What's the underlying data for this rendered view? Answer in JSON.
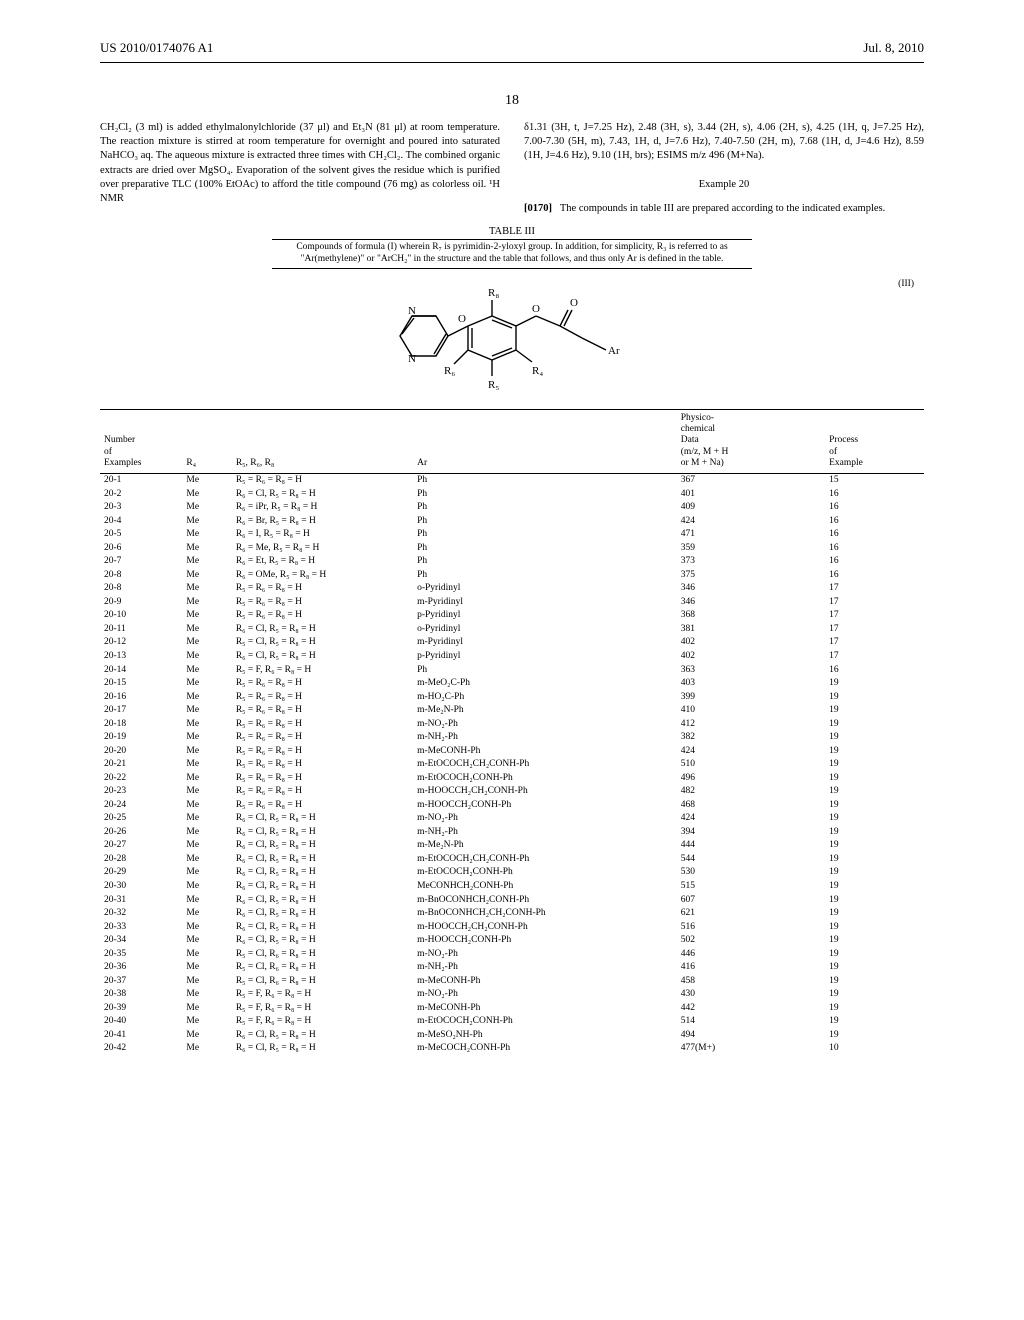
{
  "header": {
    "left": "US 2010/0174076 A1",
    "right": "Jul. 8, 2010"
  },
  "page_number": "18",
  "left_col_text": "CH₂Cl₂ (3 ml) is added ethylmalonylchloride (37 μl) and Et₃N (81 μl) at room temperature. The reaction mixture is stirred at room temperature for overnight and poured into saturated NaHCO₃ aq. The aqueous mixture is extracted three times with CH₂Cl₂. The combined organic extracts are dried over MgSO₄. Evaporation of the solvent gives the residue which is purified over preparative TLC (100% EtOAc) to afford the title compound (76 mg) as colorless oil. ¹H NMR",
  "right_col_nmr": "δ1.31 (3H, t, J=7.25 Hz), 2.48 (3H, s), 3.44 (2H, s), 4.06 (2H, s), 4.25 (1H, q, J=7.25 Hz), 7.00-7.30 (5H, m), 7.43, 1H, d, J=7.6 Hz), 7.40-7.50 (2H, m), 7.68 (1H, d, J=4.6 Hz), 8.59 (1H, J=4.6 Hz), 9.10 (1H, brs); ESIMS m/z 496 (M+Na).",
  "example20": {
    "heading": "Example 20",
    "para_num": "[0170]",
    "text": "The compounds in table III are prepared according to the indicated examples."
  },
  "table": {
    "label": "TABLE III",
    "caption": "Compounds of formula (I) wherein R₇ is pyrimidin-2-yloxyl group. In addition, for simplicity, R₃ is referred to as \"Ar(methylene)\" or \"ArCH₂\" in the structure and the table that follows, and thus only Ar is defined in the table.",
    "formula_num": "(III)",
    "structure_labels": {
      "R4": "R₄",
      "R5": "R₅",
      "R6": "R₆",
      "R8": "R₈",
      "Ar": "Ar"
    },
    "headers": {
      "num": "Number\nof\nExamples",
      "r4": "R₄",
      "r568": "R₅, R₆, R₈",
      "ar": "Ar",
      "data": "Physico-\nchemical\nData\n(m/z, M + H\nor M + Na)",
      "proc": "Process\nof\nExample"
    },
    "rows": [
      {
        "n": "20-1",
        "r4": "Me",
        "r": "R₅ = R₆ = R₈ = H",
        "ar": "Ph",
        "d": "367",
        "p": "15"
      },
      {
        "n": "20-2",
        "r4": "Me",
        "r": "R₆ = Cl, R₅ = R₈ = H",
        "ar": "Ph",
        "d": "401",
        "p": "16"
      },
      {
        "n": "20-3",
        "r4": "Me",
        "r": "R₆ = iPr, R₅ = R₈ = H",
        "ar": "Ph",
        "d": "409",
        "p": "16"
      },
      {
        "n": "20-4",
        "r4": "Me",
        "r": "R₆ = Br, R₅ = R₈ = H",
        "ar": "Ph",
        "d": "424",
        "p": "16"
      },
      {
        "n": "20-5",
        "r4": "Me",
        "r": "R₆ = I, R₅ = R₈ = H",
        "ar": "Ph",
        "d": "471",
        "p": "16"
      },
      {
        "n": "20-6",
        "r4": "Me",
        "r": "R₆ = Me, R₅ = R₈ = H",
        "ar": "Ph",
        "d": "359",
        "p": "16"
      },
      {
        "n": "20-7",
        "r4": "Me",
        "r": "R₆ = Et, R₅ = R₈ = H",
        "ar": "Ph",
        "d": "373",
        "p": "16"
      },
      {
        "n": "20-8",
        "r4": "Me",
        "r": "R₆ = OMe, R₅ = R₈ = H",
        "ar": "Ph",
        "d": "375",
        "p": "16"
      },
      {
        "n": "20-8",
        "r4": "Me",
        "r": "R₅ = R₆ = R₈ = H",
        "ar": "o-Pyridinyl",
        "d": "346",
        "p": "17"
      },
      {
        "n": "20-9",
        "r4": "Me",
        "r": "R₅ = R₆ = R₈ = H",
        "ar": "m-Pyridinyl",
        "d": "346",
        "p": "17"
      },
      {
        "n": "20-10",
        "r4": "Me",
        "r": "R₅ = R₆ = R₈ = H",
        "ar": "p-Pyridinyl",
        "d": "368",
        "p": "17"
      },
      {
        "n": "20-11",
        "r4": "Me",
        "r": "R₆ = Cl, R₅ = R₈ = H",
        "ar": "o-Pyridinyl",
        "d": "381",
        "p": "17"
      },
      {
        "n": "20-12",
        "r4": "Me",
        "r": "R₅ = Cl, R₅ = R₈ = H",
        "ar": "m-Pyridinyl",
        "d": "402",
        "p": "17"
      },
      {
        "n": "20-13",
        "r4": "Me",
        "r": "R₆ = Cl, R₅ = R₈ = H",
        "ar": "p-Pyridinyl",
        "d": "402",
        "p": "17"
      },
      {
        "n": "20-14",
        "r4": "Me",
        "r": "R₅ = F, R₆ = R₈ = H",
        "ar": "Ph",
        "d": "363",
        "p": "16"
      },
      {
        "n": "20-15",
        "r4": "Me",
        "r": "R₅ = R₆ = R₈ = H",
        "ar": "m-MeO₂C-Ph",
        "d": "403",
        "p": "19"
      },
      {
        "n": "20-16",
        "r4": "Me",
        "r": "R₅ = R₆ = R₈ = H",
        "ar": "m-HO₂C-Ph",
        "d": "399",
        "p": "19"
      },
      {
        "n": "20-17",
        "r4": "Me",
        "r": "R₅ = R₆ = R₈ = H",
        "ar": "m-Me₂N-Ph",
        "d": "410",
        "p": "19"
      },
      {
        "n": "20-18",
        "r4": "Me",
        "r": "R₅ = R₆ = R₈ = H",
        "ar": "m-NO₂-Ph",
        "d": "412",
        "p": "19"
      },
      {
        "n": "20-19",
        "r4": "Me",
        "r": "R₅ = R₆ = R₈ = H",
        "ar": "m-NH₂-Ph",
        "d": "382",
        "p": "19"
      },
      {
        "n": "20-20",
        "r4": "Me",
        "r": "R₅ = R₆ = R₈ = H",
        "ar": "m-MeCONH-Ph",
        "d": "424",
        "p": "19"
      },
      {
        "n": "20-21",
        "r4": "Me",
        "r": "R₅ = R₆ = R₈ = H",
        "ar": "m-EtOCOCH₂CH₂CONH-Ph",
        "d": "510",
        "p": "19"
      },
      {
        "n": "20-22",
        "r4": "Me",
        "r": "R₅ = R₆ = R₈ = H",
        "ar": "m-EtOCOCH₂CONH-Ph",
        "d": "496",
        "p": "19"
      },
      {
        "n": "20-23",
        "r4": "Me",
        "r": "R₅ = R₆ = R₈ = H",
        "ar": "m-HOOCCH₂CH₂CONH-Ph",
        "d": "482",
        "p": "19"
      },
      {
        "n": "20-24",
        "r4": "Me",
        "r": "R₅ = R₆ = R₈ = H",
        "ar": "m-HOOCCH₂CONH-Ph",
        "d": "468",
        "p": "19"
      },
      {
        "n": "20-25",
        "r4": "Me",
        "r": "R₆ = Cl, R₅ = R₈ = H",
        "ar": "m-NO₂-Ph",
        "d": "424",
        "p": "19"
      },
      {
        "n": "20-26",
        "r4": "Me",
        "r": "R₆ = Cl, R₅ = R₈ = H",
        "ar": "m-NH₂-Ph",
        "d": "394",
        "p": "19"
      },
      {
        "n": "20-27",
        "r4": "Me",
        "r": "R₆ = Cl, R₅ = R₈ = H",
        "ar": "m-Me₂N-Ph",
        "d": "444",
        "p": "19"
      },
      {
        "n": "20-28",
        "r4": "Me",
        "r": "R₆ = Cl, R₅ = R₈ = H",
        "ar": "m-EtOCOCH₂CH₂CONH-Ph",
        "d": "544",
        "p": "19"
      },
      {
        "n": "20-29",
        "r4": "Me",
        "r": "R₆ = Cl, R₅ = R₈ = H",
        "ar": "m-EtOCOCH₂CONH-Ph",
        "d": "530",
        "p": "19"
      },
      {
        "n": "20-30",
        "r4": "Me",
        "r": "R₆ = Cl, R₅ = R₈ = H",
        "ar": "MeCONHCH₂CONH-Ph",
        "d": "515",
        "p": "19"
      },
      {
        "n": "20-31",
        "r4": "Me",
        "r": "R₆ = Cl, R₅ = R₈ = H",
        "ar": "m-BnOCONHCH₂CONH-Ph",
        "d": "607",
        "p": "19"
      },
      {
        "n": "20-32",
        "r4": "Me",
        "r": "R₆ = Cl, R₅ = R₈ = H",
        "ar": "m-BnOCONHCH₂CH₂CONH-Ph",
        "d": "621",
        "p": "19"
      },
      {
        "n": "20-33",
        "r4": "Me",
        "r": "R₆ = Cl, R₅ = R₈ = H",
        "ar": "m-HOOCCH₂CH₂CONH-Ph",
        "d": "516",
        "p": "19"
      },
      {
        "n": "20-34",
        "r4": "Me",
        "r": "R₆ = Cl, R₅ = R₈ = H",
        "ar": "m-HOOCCH₂CONH-Ph",
        "d": "502",
        "p": "19"
      },
      {
        "n": "20-35",
        "r4": "Me",
        "r": "R₅ = Cl, R₆ = R₈ = H",
        "ar": "m-NO₂-Ph",
        "d": "446",
        "p": "19"
      },
      {
        "n": "20-36",
        "r4": "Me",
        "r": "R₅ = Cl, R₆ = R₈ = H",
        "ar": "m-NH₂-Ph",
        "d": "416",
        "p": "19"
      },
      {
        "n": "20-37",
        "r4": "Me",
        "r": "R₅ = Cl, R₆ = R₈ = H",
        "ar": "m-MeCONH-Ph",
        "d": "458",
        "p": "19"
      },
      {
        "n": "20-38",
        "r4": "Me",
        "r": "R₅ = F, R₆ = R₈ = H",
        "ar": "m-NO₂-Ph",
        "d": "430",
        "p": "19"
      },
      {
        "n": "20-39",
        "r4": "Me",
        "r": "R₅ = F, R₆ = R₈ = H",
        "ar": "m-MeCONH-Ph",
        "d": "442",
        "p": "19"
      },
      {
        "n": "20-40",
        "r4": "Me",
        "r": "R₅ = F, R₆ = R₈ = H",
        "ar": "m-EtOCOCH₂CONH-Ph",
        "d": "514",
        "p": "19"
      },
      {
        "n": "20-41",
        "r4": "Me",
        "r": "R₆ = Cl, R₅ = R₈ = H",
        "ar": "m-MeSO₂NH-Ph",
        "d": "494",
        "p": "19"
      },
      {
        "n": "20-42",
        "r4": "Me",
        "r": "R₆ = Cl, R₅ = R₈ = H",
        "ar": "m-MeCOCH₂CONH-Ph",
        "d": "477(M+)",
        "p": "10"
      }
    ]
  }
}
